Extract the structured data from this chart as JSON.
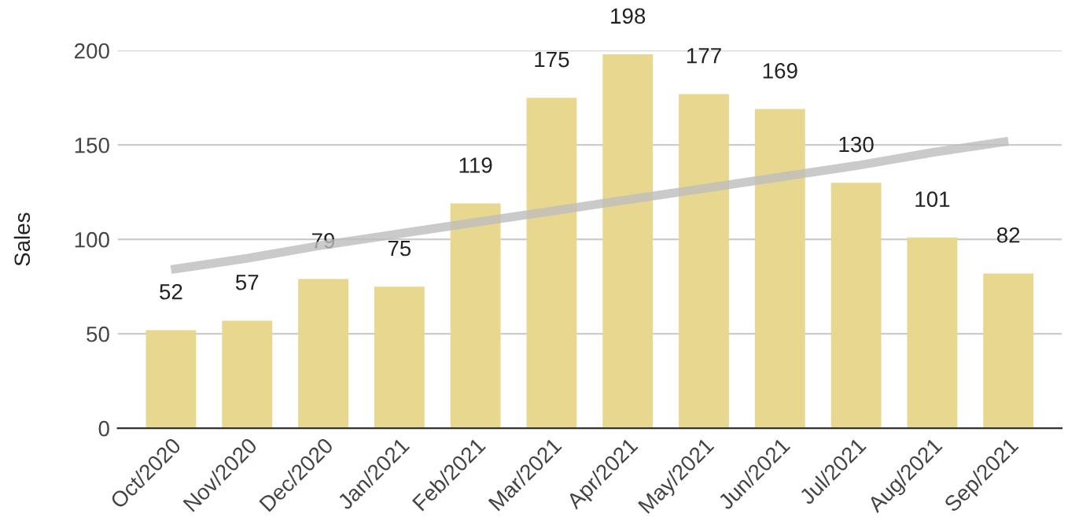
{
  "chart_data": {
    "type": "bar",
    "ylabel": "Sales",
    "categories": [
      "Oct/2020",
      "Nov/2020",
      "Dec/2020",
      "Jan/2021",
      "Feb/2021",
      "Mar/2021",
      "Apr/2021",
      "May/2021",
      "Jun/2021",
      "Jul/2021",
      "Aug/2021",
      "Sep/2021"
    ],
    "series": [
      {
        "color": "#e8d88f",
        "values": [
          52,
          57,
          79,
          75,
          119,
          175,
          198,
          177,
          169,
          130,
          101,
          82
        ],
        "value_labels": [
          "52",
          "57",
          "79",
          "75",
          "119",
          "175",
          "198",
          "177",
          "169",
          "130",
          "101",
          "82"
        ]
      },
      {
        "type": "line",
        "color": "#bdbdbd",
        "values": [
          84,
          90,
          97,
          103,
          109,
          115,
          121,
          127,
          133,
          139,
          146,
          152
        ]
      }
    ],
    "ylim": [
      0,
      200
    ],
    "yticks": [
      0,
      50,
      100,
      150,
      200
    ],
    "grid": "y",
    "legend": false
  }
}
